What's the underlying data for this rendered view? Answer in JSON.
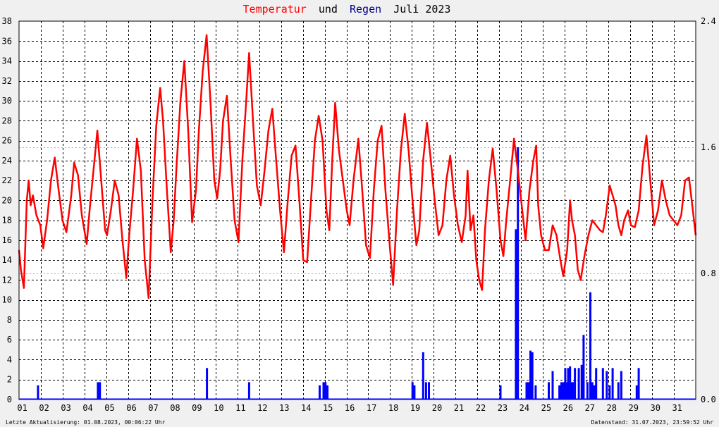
{
  "chart_data": {
    "type": "line",
    "title": {
      "part1": "Temperatur",
      "part2": "und",
      "part3": "Regen",
      "part4": "Juli 2023",
      "colors": {
        "part1": "#ff0000",
        "part2": "#000000",
        "part3": "#00008b",
        "part4": "#000000"
      }
    },
    "x_axis": {
      "tick_labels": [
        "01",
        "02",
        "03",
        "04",
        "05",
        "06",
        "07",
        "08",
        "09",
        "10",
        "11",
        "12",
        "13",
        "14",
        "15",
        "16",
        "17",
        "18",
        "19",
        "20",
        "21",
        "22",
        "23",
        "24",
        "25",
        "26",
        "27",
        "28",
        "29",
        "30",
        "31"
      ],
      "range_days": [
        0,
        31
      ]
    },
    "y_left": {
      "tick_labels": [
        "0",
        "2",
        "4",
        "6",
        "8",
        "10",
        "12",
        "14",
        "16",
        "18",
        "20",
        "22",
        "24",
        "26",
        "28",
        "30",
        "32",
        "34",
        "36",
        "38"
      ],
      "range": [
        0,
        38
      ]
    },
    "y_right": {
      "tick_labels": [
        "0.0",
        "0.8",
        "1.6",
        "2.4"
      ],
      "range": [
        0,
        2.4
      ]
    },
    "grid": true,
    "series": [
      {
        "name": "Temperatur",
        "color": "#ff0000",
        "axis": "left",
        "points": [
          [
            0.0,
            15.0
          ],
          [
            0.1,
            13.0
          ],
          [
            0.25,
            11.2
          ],
          [
            0.4,
            20.0
          ],
          [
            0.5,
            22.0
          ],
          [
            0.6,
            19.5
          ],
          [
            0.72,
            20.5
          ],
          [
            0.9,
            18.5
          ],
          [
            1.1,
            17.5
          ],
          [
            1.25,
            15.2
          ],
          [
            1.45,
            18.0
          ],
          [
            1.65,
            22.0
          ],
          [
            1.85,
            24.3
          ],
          [
            2.05,
            21.0
          ],
          [
            2.25,
            18.0
          ],
          [
            2.45,
            16.8
          ],
          [
            2.7,
            20.5
          ],
          [
            2.85,
            23.8
          ],
          [
            3.05,
            22.5
          ],
          [
            3.25,
            18.5
          ],
          [
            3.5,
            15.6
          ],
          [
            3.65,
            19.0
          ],
          [
            3.85,
            23.0
          ],
          [
            4.05,
            27.0
          ],
          [
            4.25,
            22.0
          ],
          [
            4.45,
            17.0
          ],
          [
            4.55,
            16.5
          ],
          [
            4.75,
            19.0
          ],
          [
            4.95,
            22.0
          ],
          [
            5.15,
            20.5
          ],
          [
            5.35,
            16.0
          ],
          [
            5.55,
            12.2
          ],
          [
            5.7,
            16.5
          ],
          [
            5.9,
            21.0
          ],
          [
            6.1,
            26.2
          ],
          [
            6.3,
            23.0
          ],
          [
            6.5,
            14.0
          ],
          [
            6.7,
            10.2
          ],
          [
            6.9,
            20.0
          ],
          [
            7.1,
            27.5
          ],
          [
            7.3,
            31.3
          ],
          [
            7.45,
            28.0
          ],
          [
            7.65,
            21.0
          ],
          [
            7.85,
            14.8
          ],
          [
            8.0,
            18.0
          ],
          [
            8.15,
            23.5
          ],
          [
            8.35,
            30.0
          ],
          [
            8.55,
            34.0
          ],
          [
            8.75,
            27.0
          ],
          [
            8.95,
            17.8
          ],
          [
            9.15,
            21.0
          ],
          [
            9.3,
            27.0
          ],
          [
            9.5,
            33.0
          ],
          [
            9.7,
            36.6
          ],
          [
            9.9,
            30.0
          ],
          [
            10.1,
            22.0
          ],
          [
            10.25,
            20.2
          ],
          [
            10.4,
            23.0
          ],
          [
            10.55,
            28.0
          ],
          [
            10.75,
            30.5
          ],
          [
            10.95,
            24.0
          ],
          [
            11.15,
            18.0
          ],
          [
            11.35,
            15.8
          ],
          [
            11.55,
            24.0
          ],
          [
            11.75,
            30.0
          ],
          [
            11.9,
            34.8
          ],
          [
            12.1,
            28.0
          ],
          [
            12.3,
            21.5
          ],
          [
            12.5,
            19.5
          ],
          [
            12.7,
            23.0
          ],
          [
            12.9,
            27.0
          ],
          [
            13.1,
            29.2
          ],
          [
            13.3,
            24.0
          ],
          [
            13.5,
            19.0
          ],
          [
            13.7,
            14.8
          ],
          [
            13.9,
            20.0
          ],
          [
            14.1,
            24.5
          ],
          [
            14.3,
            25.5
          ],
          [
            14.5,
            20.0
          ],
          [
            14.7,
            14.0
          ],
          [
            14.9,
            13.8
          ],
          [
            15.1,
            20.0
          ],
          [
            15.3,
            26.0
          ],
          [
            15.5,
            28.5
          ],
          [
            15.7,
            26.0
          ],
          [
            15.9,
            19.0
          ],
          [
            16.05,
            17.0
          ],
          [
            16.2,
            24.0
          ],
          [
            16.35,
            29.8
          ],
          [
            16.55,
            25.0
          ],
          [
            16.75,
            22.0
          ],
          [
            16.95,
            19.0
          ],
          [
            17.1,
            17.5
          ],
          [
            17.3,
            22.0
          ],
          [
            17.55,
            26.2
          ],
          [
            17.75,
            21.0
          ],
          [
            17.95,
            15.5
          ],
          [
            18.15,
            14.2
          ],
          [
            18.35,
            21.0
          ],
          [
            18.55,
            26.0
          ],
          [
            18.75,
            27.5
          ],
          [
            18.95,
            21.0
          ],
          [
            19.15,
            16.0
          ],
          [
            19.35,
            11.5
          ],
          [
            19.55,
            19.0
          ],
          [
            19.75,
            25.0
          ],
          [
            19.95,
            28.7
          ],
          [
            20.15,
            25.0
          ],
          [
            20.35,
            20.0
          ],
          [
            20.55,
            15.5
          ],
          [
            20.7,
            17.0
          ],
          [
            20.9,
            24.0
          ],
          [
            21.1,
            27.8
          ],
          [
            21.3,
            24.0
          ],
          [
            21.5,
            20.0
          ],
          [
            21.7,
            16.5
          ],
          [
            21.9,
            17.5
          ],
          [
            22.1,
            22.0
          ],
          [
            22.3,
            24.5
          ],
          [
            22.5,
            20.5
          ],
          [
            22.7,
            17.5
          ],
          [
            22.9,
            15.8
          ],
          [
            23.1,
            18.5
          ],
          [
            23.2,
            23.0
          ],
          [
            23.35,
            17.0
          ],
          [
            23.5,
            18.5
          ],
          [
            23.65,
            14.0
          ],
          [
            23.8,
            12.0
          ],
          [
            23.95,
            11.0
          ],
          [
            24.1,
            17.0
          ],
          [
            24.3,
            22.0
          ],
          [
            24.5,
            25.2
          ],
          [
            24.7,
            21.0
          ],
          [
            24.9,
            16.0
          ],
          [
            25.05,
            14.4
          ],
          [
            25.2,
            18.0
          ],
          [
            25.4,
            22.0
          ],
          [
            25.6,
            26.2
          ],
          [
            25.8,
            23.0
          ],
          [
            26.0,
            19.5
          ],
          [
            26.2,
            16.0
          ],
          [
            26.4,
            21.0
          ],
          [
            26.6,
            24.0
          ],
          [
            26.75,
            25.5
          ],
          [
            26.85,
            19.5
          ],
          [
            27.0,
            16.5
          ],
          [
            27.2,
            15.0
          ],
          [
            27.4,
            15.0
          ],
          [
            27.6,
            17.5
          ],
          [
            27.8,
            16.5
          ],
          [
            28.0,
            14.0
          ],
          [
            28.15,
            12.4
          ],
          [
            28.35,
            15.0
          ],
          [
            28.5,
            20.0
          ],
          [
            28.6,
            18.0
          ],
          [
            28.75,
            16.5
          ],
          [
            28.9,
            13.0
          ],
          [
            29.05,
            12.0
          ],
          [
            29.25,
            14.5
          ],
          [
            29.45,
            16.5
          ],
          [
            29.65,
            18.0
          ],
          [
            29.85,
            17.5
          ],
          [
            30.05,
            17.0
          ],
          [
            30.2,
            16.8
          ],
          [
            30.35,
            18.5
          ],
          [
            30.55,
            21.5
          ],
          [
            30.7,
            20.5
          ],
          [
            30.85,
            19.5
          ],
          [
            31.0,
            17.5
          ],
          [
            31.15,
            16.5
          ],
          [
            31.3,
            18.0
          ],
          [
            31.5,
            19.0
          ],
          [
            31.65,
            17.5
          ],
          [
            31.85,
            17.3
          ],
          [
            32.05,
            19.0
          ],
          [
            32.25,
            23.5
          ],
          [
            32.45,
            26.5
          ],
          [
            32.65,
            22.0
          ],
          [
            32.85,
            17.5
          ],
          [
            33.05,
            19.0
          ],
          [
            33.25,
            22.0
          ],
          [
            33.45,
            20.0
          ],
          [
            33.65,
            18.5
          ],
          [
            33.85,
            18.0
          ],
          [
            34.05,
            17.5
          ],
          [
            34.25,
            18.5
          ],
          [
            34.45,
            22.0
          ],
          [
            34.65,
            22.3
          ],
          [
            34.85,
            19.0
          ],
          [
            35.0,
            16.5
          ]
        ]
      },
      {
        "name": "Regen",
        "color": "#0000ff",
        "axis": "right",
        "bars": [
          [
            0.98,
            0.09
          ],
          [
            4.08,
            0.11
          ],
          [
            4.18,
            0.11
          ],
          [
            9.72,
            0.2
          ],
          [
            11.9,
            0.11
          ],
          [
            15.55,
            0.09
          ],
          [
            15.75,
            0.11
          ],
          [
            15.85,
            0.11
          ],
          [
            15.95,
            0.09
          ],
          [
            20.35,
            0.11
          ],
          [
            20.45,
            0.09
          ],
          [
            20.9,
            0.3
          ],
          [
            21.05,
            0.11
          ],
          [
            21.2,
            0.11
          ],
          [
            24.9,
            0.09
          ],
          [
            25.7,
            1.08
          ],
          [
            25.8,
            1.6
          ],
          [
            26.25,
            0.11
          ],
          [
            26.35,
            0.11
          ],
          [
            26.45,
            0.31
          ],
          [
            26.55,
            0.3
          ],
          [
            26.72,
            0.09
          ],
          [
            27.4,
            0.11
          ],
          [
            27.6,
            0.18
          ],
          [
            27.95,
            0.09
          ],
          [
            28.05,
            0.11
          ],
          [
            28.15,
            0.11
          ],
          [
            28.25,
            0.2
          ],
          [
            28.3,
            0.11
          ],
          [
            28.4,
            0.2
          ],
          [
            28.5,
            0.21
          ],
          [
            28.55,
            0.11
          ],
          [
            28.65,
            0.11
          ],
          [
            28.75,
            0.2
          ],
          [
            28.95,
            0.2
          ],
          [
            29.1,
            0.22
          ],
          [
            29.2,
            0.41
          ],
          [
            29.4,
            0.11
          ],
          [
            29.55,
            0.68
          ],
          [
            29.65,
            0.11
          ],
          [
            29.75,
            0.09
          ],
          [
            29.85,
            0.2
          ],
          [
            30.2,
            0.2
          ],
          [
            30.4,
            0.18
          ],
          [
            30.55,
            0.09
          ],
          [
            30.7,
            0.2
          ],
          [
            31.0,
            0.11
          ],
          [
            31.15,
            0.18
          ],
          [
            31.95,
            0.09
          ],
          [
            32.05,
            0.2
          ]
        ]
      }
    ]
  },
  "footer": {
    "left": "Letzte Aktualisierung: 01.08.2023, 00:06:22 Uhr",
    "right": "Datenstand: 31.07.2023, 23:59:52 Uhr"
  }
}
